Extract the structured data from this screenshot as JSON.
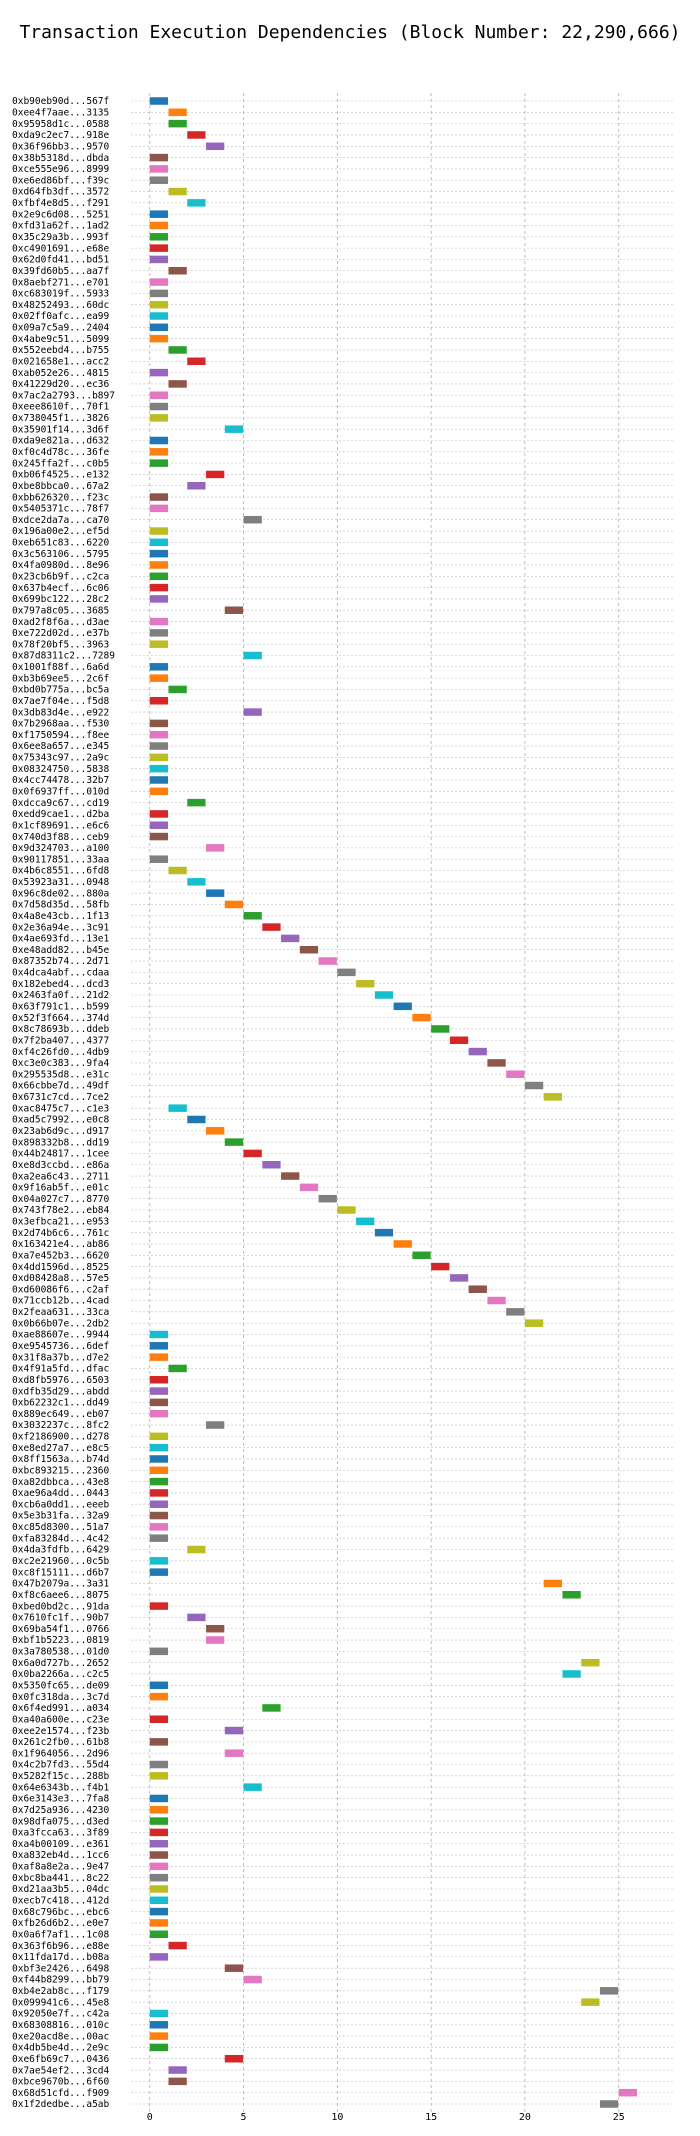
{
  "chart_data": {
    "type": "bar",
    "orientation": "horizontal",
    "title": "Transaction Execution Dependencies (Block Number: 22,290,666)",
    "xlabel": "",
    "ylabel": "",
    "xlim": [
      -1,
      28
    ],
    "xticks": [
      0,
      5,
      10,
      15,
      20,
      25
    ],
    "grid": true,
    "colors": [
      "#1f77b4",
      "#ff7f0e",
      "#2ca02c",
      "#d62728",
      "#9467bd",
      "#8c564b",
      "#e377c2",
      "#7f7f7f",
      "#bcbd22",
      "#17becf"
    ],
    "transactions": [
      {
        "label": "0xb90eb90d...567f",
        "start": 0,
        "end": 1
      },
      {
        "label": "0xee4f7aae...3135",
        "start": 1,
        "end": 2
      },
      {
        "label": "0x95958d1c...0588",
        "start": 1,
        "end": 2
      },
      {
        "label": "0xda9c2ec7...918e",
        "start": 2,
        "end": 3
      },
      {
        "label": "0x36f96bb3...9570",
        "start": 3,
        "end": 4
      },
      {
        "label": "0x38b5318d...dbda",
        "start": 0,
        "end": 1
      },
      {
        "label": "0xce555e96...8999",
        "start": 0,
        "end": 1
      },
      {
        "label": "0xe6ed86bf...f39c",
        "start": 0,
        "end": 1
      },
      {
        "label": "0xd64fb3df...3572",
        "start": 1,
        "end": 2
      },
      {
        "label": "0xfbf4e8d5...f291",
        "start": 2,
        "end": 3
      },
      {
        "label": "0x2e9c6d08...5251",
        "start": 0,
        "end": 1
      },
      {
        "label": "0xfd31a62f...1ad2",
        "start": 0,
        "end": 1
      },
      {
        "label": "0x35c29a3b...993f",
        "start": 0,
        "end": 1
      },
      {
        "label": "0xc4901691...e68e",
        "start": 0,
        "end": 1
      },
      {
        "label": "0x62d0fd41...bd51",
        "start": 0,
        "end": 1
      },
      {
        "label": "0x39fd60b5...aa7f",
        "start": 1,
        "end": 2
      },
      {
        "label": "0x8aebf271...e701",
        "start": 0,
        "end": 1
      },
      {
        "label": "0xc683019f...5933",
        "start": 0,
        "end": 1
      },
      {
        "label": "0x48252493...60dc",
        "start": 0,
        "end": 1
      },
      {
        "label": "0x02ff0afc...ea99",
        "start": 0,
        "end": 1
      },
      {
        "label": "0x09a7c5a9...2404",
        "start": 0,
        "end": 1
      },
      {
        "label": "0x4abe9c51...5099",
        "start": 0,
        "end": 1
      },
      {
        "label": "0x552eebd4...b755",
        "start": 1,
        "end": 2
      },
      {
        "label": "0x021658e1...acc2",
        "start": 2,
        "end": 3
      },
      {
        "label": "0xab052e26...4815",
        "start": 0,
        "end": 1
      },
      {
        "label": "0x41229d20...ec36",
        "start": 1,
        "end": 2
      },
      {
        "label": "0x7ac2a2793...b897",
        "start": 0,
        "end": 1
      },
      {
        "label": "0xeee8610f...70f1",
        "start": 0,
        "end": 1
      },
      {
        "label": "0x738045f1...3826",
        "start": 0,
        "end": 1
      },
      {
        "label": "0x35901f14...3d6f",
        "start": 4,
        "end": 5
      },
      {
        "label": "0xda9e821a...d632",
        "start": 0,
        "end": 1
      },
      {
        "label": "0xf0c4d78c...36fe",
        "start": 0,
        "end": 1
      },
      {
        "label": "0x245ffa2f...c0b5",
        "start": 0,
        "end": 1
      },
      {
        "label": "0xb06f4525...e132",
        "start": 3,
        "end": 4
      },
      {
        "label": "0xbe8bbca0...67a2",
        "start": 2,
        "end": 3
      },
      {
        "label": "0xbb626320...f23c",
        "start": 0,
        "end": 1
      },
      {
        "label": "0x5405371c...78f7",
        "start": 0,
        "end": 1
      },
      {
        "label": "0xdce2da7a...ca70",
        "start": 5,
        "end": 6
      },
      {
        "label": "0x196a00e2...ef5d",
        "start": 0,
        "end": 1
      },
      {
        "label": "0xeb651c83...6220",
        "start": 0,
        "end": 1
      },
      {
        "label": "0x3c563106...5795",
        "start": 0,
        "end": 1
      },
      {
        "label": "0x4fa0980d...8e96",
        "start": 0,
        "end": 1
      },
      {
        "label": "0x23cb6b9f...c2ca",
        "start": 0,
        "end": 1
      },
      {
        "label": "0x637b4ecf...6c06",
        "start": 0,
        "end": 1
      },
      {
        "label": "0x699bc122...28c2",
        "start": 0,
        "end": 1
      },
      {
        "label": "0x797a8c05...3685",
        "start": 4,
        "end": 5
      },
      {
        "label": "0xad2f8f6a...d3ae",
        "start": 0,
        "end": 1
      },
      {
        "label": "0xe722d02d...e37b",
        "start": 0,
        "end": 1
      },
      {
        "label": "0x78f20bf5...3963",
        "start": 0,
        "end": 1
      },
      {
        "label": "0x87d8311c2...7289",
        "start": 5,
        "end": 6
      },
      {
        "label": "0x1001f88f...6a6d",
        "start": 0,
        "end": 1
      },
      {
        "label": "0xb3b69ee5...2c6f",
        "start": 0,
        "end": 1
      },
      {
        "label": "0xbd0b775a...bc5a",
        "start": 1,
        "end": 2
      },
      {
        "label": "0x7ae7f04e...f5d8",
        "start": 0,
        "end": 1
      },
      {
        "label": "0x3db83d4e...e922",
        "start": 5,
        "end": 6
      },
      {
        "label": "0x7b2968aa...f530",
        "start": 0,
        "end": 1
      },
      {
        "label": "0xf1750594...f8ee",
        "start": 0,
        "end": 1
      },
      {
        "label": "0x6ee8a657...e345",
        "start": 0,
        "end": 1
      },
      {
        "label": "0x75343c97...2a9c",
        "start": 0,
        "end": 1
      },
      {
        "label": "0x08324750...5838",
        "start": 0,
        "end": 1
      },
      {
        "label": "0x4cc74478...32b7",
        "start": 0,
        "end": 1
      },
      {
        "label": "0x0f6937ff...010d",
        "start": 0,
        "end": 1
      },
      {
        "label": "0xdcca9c67...cd19",
        "start": 2,
        "end": 3
      },
      {
        "label": "0xedd9cae1...d2ba",
        "start": 0,
        "end": 1
      },
      {
        "label": "0x1cf89691...e6c6",
        "start": 0,
        "end": 1
      },
      {
        "label": "0x740d3f88...ceb9",
        "start": 0,
        "end": 1
      },
      {
        "label": "0x9d324703...a100",
        "start": 3,
        "end": 4
      },
      {
        "label": "0x90117851...33aa",
        "start": 0,
        "end": 1
      },
      {
        "label": "0x4b6c8551...6fd8",
        "start": 1,
        "end": 2
      },
      {
        "label": "0x53923a31...0948",
        "start": 2,
        "end": 3
      },
      {
        "label": "0x96c8de02...880a",
        "start": 3,
        "end": 4
      },
      {
        "label": "0x7d58d35d...58fb",
        "start": 4,
        "end": 5
      },
      {
        "label": "0x4a8e43cb...1f13",
        "start": 5,
        "end": 6
      },
      {
        "label": "0x2e36a94e...3c91",
        "start": 6,
        "end": 7
      },
      {
        "label": "0x4ae693fd...13e1",
        "start": 7,
        "end": 8
      },
      {
        "label": "0xe48add82...b45e",
        "start": 8,
        "end": 9
      },
      {
        "label": "0x87352b74...2d71",
        "start": 9,
        "end": 10
      },
      {
        "label": "0x4dca4abf...cdaa",
        "start": 10,
        "end": 11
      },
      {
        "label": "0x182ebed4...dcd3",
        "start": 11,
        "end": 12
      },
      {
        "label": "0x2463fa0f...21d2",
        "start": 12,
        "end": 13
      },
      {
        "label": "0x63f791c1...b599",
        "start": 13,
        "end": 14
      },
      {
        "label": "0x52f3f664...374d",
        "start": 14,
        "end": 15
      },
      {
        "label": "0x8c78693b...ddeb",
        "start": 15,
        "end": 16
      },
      {
        "label": "0x7f2ba407...4377",
        "start": 16,
        "end": 17
      },
      {
        "label": "0xf4c26fd0...4db9",
        "start": 17,
        "end": 18
      },
      {
        "label": "0xc3e0c383...9fa4",
        "start": 18,
        "end": 19
      },
      {
        "label": "0x295535d8...e31c",
        "start": 19,
        "end": 20
      },
      {
        "label": "0x66cbbe7d...49df",
        "start": 20,
        "end": 21
      },
      {
        "label": "0x6731c7cd...7ce2",
        "start": 21,
        "end": 22
      },
      {
        "label": "0xac8475c7...c1e3",
        "start": 1,
        "end": 2
      },
      {
        "label": "0xad5c7992...e0c8",
        "start": 2,
        "end": 3
      },
      {
        "label": "0x23ab6d9c...d917",
        "start": 3,
        "end": 4
      },
      {
        "label": "0x898332b8...dd19",
        "start": 4,
        "end": 5
      },
      {
        "label": "0x44b24817...1cee",
        "start": 5,
        "end": 6
      },
      {
        "label": "0xe8d3ccbd...e86a",
        "start": 6,
        "end": 7
      },
      {
        "label": "0xa2ea6c43...2711",
        "start": 7,
        "end": 8
      },
      {
        "label": "0x9f16ab5f...e01c",
        "start": 8,
        "end": 9
      },
      {
        "label": "0x04a027c7...8770",
        "start": 9,
        "end": 10
      },
      {
        "label": "0x743f78e2...eb84",
        "start": 10,
        "end": 11
      },
      {
        "label": "0x3efbca21...e953",
        "start": 11,
        "end": 12
      },
      {
        "label": "0x2d74b6c6...761c",
        "start": 12,
        "end": 13
      },
      {
        "label": "0x163421e4...ab86",
        "start": 13,
        "end": 14
      },
      {
        "label": "0xa7e452b3...6620",
        "start": 14,
        "end": 15
      },
      {
        "label": "0x4dd1596d...8525",
        "start": 15,
        "end": 16
      },
      {
        "label": "0xd08428a8...57e5",
        "start": 16,
        "end": 17
      },
      {
        "label": "0xd60086f6...c2af",
        "start": 17,
        "end": 18
      },
      {
        "label": "0x71ccb12b...4cad",
        "start": 18,
        "end": 19
      },
      {
        "label": "0x2feaa631...33ca",
        "start": 19,
        "end": 20
      },
      {
        "label": "0x0b66b07e...2db2",
        "start": 20,
        "end": 21
      },
      {
        "label": "0xae88607e...9944",
        "start": 0,
        "end": 1
      },
      {
        "label": "0xe9545736...6def",
        "start": 0,
        "end": 1
      },
      {
        "label": "0x31f8a37b...d7e2",
        "start": 0,
        "end": 1
      },
      {
        "label": "0x4f91a5fd...dfac",
        "start": 1,
        "end": 2
      },
      {
        "label": "0xd8fb5976...6503",
        "start": 0,
        "end": 1
      },
      {
        "label": "0xdfb35d29...abdd",
        "start": 0,
        "end": 1
      },
      {
        "label": "0xb62232c1...dd49",
        "start": 0,
        "end": 1
      },
      {
        "label": "0x889ec649...eb07",
        "start": 0,
        "end": 1
      },
      {
        "label": "0x3032237c...8fc2",
        "start": 3,
        "end": 4
      },
      {
        "label": "0xf2186900...d278",
        "start": 0,
        "end": 1
      },
      {
        "label": "0xe8ed27a7...e8c5",
        "start": 0,
        "end": 1
      },
      {
        "label": "0x8ff1563a...b74d",
        "start": 0,
        "end": 1
      },
      {
        "label": "0xbc893215...2360",
        "start": 0,
        "end": 1
      },
      {
        "label": "0xa82dbbca...43e8",
        "start": 0,
        "end": 1
      },
      {
        "label": "0xae96a4dd...0443",
        "start": 0,
        "end": 1
      },
      {
        "label": "0xcb6a0dd1...eeeb",
        "start": 0,
        "end": 1
      },
      {
        "label": "0x5e3b31fa...32a9",
        "start": 0,
        "end": 1
      },
      {
        "label": "0xc85d8300...51a7",
        "start": 0,
        "end": 1
      },
      {
        "label": "0xfa83284d...4c42",
        "start": 0,
        "end": 1
      },
      {
        "label": "0x4da3fdfb...6429",
        "start": 2,
        "end": 3
      },
      {
        "label": "0xc2e21960...0c5b",
        "start": 0,
        "end": 1
      },
      {
        "label": "0xc8f15111...d6b7",
        "start": 0,
        "end": 1
      },
      {
        "label": "0x47b2079a...3a31",
        "start": 21,
        "end": 22
      },
      {
        "label": "0xf8c6aee6...8075",
        "start": 22,
        "end": 23
      },
      {
        "label": "0xbed0bd2c...91da",
        "start": 0,
        "end": 1
      },
      {
        "label": "0x7610fc1f...90b7",
        "start": 2,
        "end": 3
      },
      {
        "label": "0x69ba54f1...0766",
        "start": 3,
        "end": 4
      },
      {
        "label": "0xbf1b5223...0819",
        "start": 3,
        "end": 4
      },
      {
        "label": "0x3a780538...01d0",
        "start": 0,
        "end": 1
      },
      {
        "label": "0x6a0d727b...2652",
        "start": 23,
        "end": 24
      },
      {
        "label": "0x0ba2266a...c2c5",
        "start": 22,
        "end": 23
      },
      {
        "label": "0x5350fc65...de09",
        "start": 0,
        "end": 1
      },
      {
        "label": "0x0fc318da...3c7d",
        "start": 0,
        "end": 1
      },
      {
        "label": "0x6f4ed991...a034",
        "start": 6,
        "end": 7
      },
      {
        "label": "0xa40a600e...c23e",
        "start": 0,
        "end": 1
      },
      {
        "label": "0xee2e1574...f23b",
        "start": 4,
        "end": 5
      },
      {
        "label": "0x261c2fb0...61b8",
        "start": 0,
        "end": 1
      },
      {
        "label": "0x1f964056...2d96",
        "start": 4,
        "end": 5
      },
      {
        "label": "0x4c2b7fd3...55d4",
        "start": 0,
        "end": 1
      },
      {
        "label": "0x5282f15c...288b",
        "start": 0,
        "end": 1
      },
      {
        "label": "0x64e6343b...f4b1",
        "start": 5,
        "end": 6
      },
      {
        "label": "0x6e3143e3...7fa8",
        "start": 0,
        "end": 1
      },
      {
        "label": "0x7d25a936...4230",
        "start": 0,
        "end": 1
      },
      {
        "label": "0x98dfa075...d3ed",
        "start": 0,
        "end": 1
      },
      {
        "label": "0xa3fcca63...3f89",
        "start": 0,
        "end": 1
      },
      {
        "label": "0xa4b00109...e361",
        "start": 0,
        "end": 1
      },
      {
        "label": "0xa832eb4d...1cc6",
        "start": 0,
        "end": 1
      },
      {
        "label": "0xaf8a8e2a...9e47",
        "start": 0,
        "end": 1
      },
      {
        "label": "0xbc8ba441...8c22",
        "start": 0,
        "end": 1
      },
      {
        "label": "0xd21aa3b5...04dc",
        "start": 0,
        "end": 1
      },
      {
        "label": "0xecb7c418...412d",
        "start": 0,
        "end": 1
      },
      {
        "label": "0x68c796bc...ebc6",
        "start": 0,
        "end": 1
      },
      {
        "label": "0xfb26d6b2...e0e7",
        "start": 0,
        "end": 1
      },
      {
        "label": "0x0a6f7af1...1c08",
        "start": 0,
        "end": 1
      },
      {
        "label": "0x363f6b96...e88e",
        "start": 1,
        "end": 2
      },
      {
        "label": "0x11fda17d...b08a",
        "start": 0,
        "end": 1
      },
      {
        "label": "0xbf3e2426...6498",
        "start": 4,
        "end": 5
      },
      {
        "label": "0xf44b8299...bb79",
        "start": 5,
        "end": 6
      },
      {
        "label": "0xb4e2ab8c...f179",
        "start": 24,
        "end": 25
      },
      {
        "label": "0x099941c6...45e8",
        "start": 23,
        "end": 24
      },
      {
        "label": "0x92050e7f...c42a",
        "start": 0,
        "end": 1
      },
      {
        "label": "0x68308816...010c",
        "start": 0,
        "end": 1
      },
      {
        "label": "0xe20acd8e...00ac",
        "start": 0,
        "end": 1
      },
      {
        "label": "0x4db5be4d...2e9c",
        "start": 0,
        "end": 1
      },
      {
        "label": "0xe6fb69c7...0436",
        "start": 4,
        "end": 5
      },
      {
        "label": "0x7ae54ef2...3cd4",
        "start": 1,
        "end": 2
      },
      {
        "label": "0xbce9670b...6f60",
        "start": 1,
        "end": 2
      },
      {
        "label": "0x68d51cfd...f909",
        "start": 25,
        "end": 26
      },
      {
        "label": "0x1f2dedbe...a5ab",
        "start": 24,
        "end": 25
      }
    ]
  }
}
